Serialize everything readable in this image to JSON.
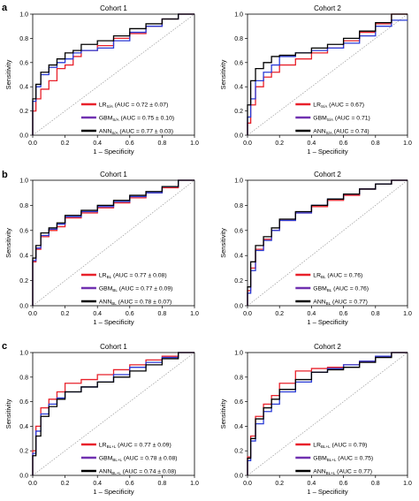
{
  "colors": {
    "lr": "#e8202a",
    "gbm": "#7030b0",
    "ann": "#000000",
    "gbm_blue": "#2a3bd6",
    "diag": "#9a9a9a",
    "legend_gbm": "#7030b0"
  },
  "panel_letters": [
    "a",
    "b",
    "c"
  ],
  "chart_data": [
    {
      "type": "line",
      "panel": "a",
      "title": "Cohort 1",
      "xlabel": "1 – Specificity",
      "ylabel": "Sensitivity",
      "xlim": [
        0,
        1
      ],
      "ylim": [
        0,
        1
      ],
      "xticks": [
        "0.0",
        "0.2",
        "0.4",
        "0.6",
        "0.8",
        "1.0"
      ],
      "yticks": [
        "0.0",
        "0.2",
        "0.4",
        "0.6",
        "0.8",
        "1.0"
      ],
      "legend_position": "bottom-right",
      "series": [
        {
          "key": "lr",
          "name": "LR",
          "sub": "S/A",
          "auc": "(AUC = 0.72 ± 0.07)",
          "x": [
            0,
            0.02,
            0.05,
            0.1,
            0.15,
            0.2,
            0.25,
            0.3,
            0.4,
            0.5,
            0.6,
            0.7,
            0.8,
            0.9,
            1.0
          ],
          "y": [
            0,
            0.2,
            0.3,
            0.38,
            0.45,
            0.55,
            0.58,
            0.65,
            0.7,
            0.74,
            0.8,
            0.84,
            0.9,
            0.96,
            1.0
          ]
        },
        {
          "key": "gbm",
          "name": "GBM",
          "sub": "S/A",
          "auc": "(AUC = 0.75 ± 0.10)",
          "x": [
            0,
            0.02,
            0.05,
            0.1,
            0.15,
            0.2,
            0.25,
            0.3,
            0.4,
            0.5,
            0.6,
            0.7,
            0.8,
            0.9,
            1.0
          ],
          "y": [
            0,
            0.28,
            0.4,
            0.5,
            0.56,
            0.6,
            0.63,
            0.68,
            0.7,
            0.72,
            0.78,
            0.85,
            0.9,
            0.96,
            1.0
          ]
        },
        {
          "key": "ann",
          "name": "ANN",
          "sub": "S/A",
          "auc": "(AUC = 0.77 ± 0.03)",
          "x": [
            0,
            0.02,
            0.05,
            0.1,
            0.15,
            0.2,
            0.25,
            0.3,
            0.4,
            0.5,
            0.6,
            0.7,
            0.8,
            0.9,
            1.0
          ],
          "y": [
            0,
            0.3,
            0.42,
            0.52,
            0.58,
            0.63,
            0.68,
            0.7,
            0.75,
            0.78,
            0.82,
            0.88,
            0.92,
            0.96,
            1.0
          ]
        }
      ]
    },
    {
      "type": "line",
      "panel": "a",
      "title": "Cohort 2",
      "xlabel": "1 – Specificity",
      "ylabel": "Sensitivity",
      "xlim": [
        0,
        1
      ],
      "ylim": [
        0,
        1
      ],
      "xticks": [
        "0.0",
        "0.2",
        "0.4",
        "0.6",
        "0.8",
        "1.0"
      ],
      "yticks": [
        "0.0",
        "0.2",
        "0.4",
        "0.6",
        "0.8",
        "1.0"
      ],
      "legend_position": "bottom-right",
      "series": [
        {
          "key": "lr",
          "name": "LR",
          "sub": "S/A",
          "auc": "(AUC = 0.67)",
          "x": [
            0,
            0.02,
            0.05,
            0.1,
            0.15,
            0.2,
            0.3,
            0.4,
            0.5,
            0.6,
            0.7,
            0.8,
            0.9,
            1.0
          ],
          "y": [
            0,
            0.1,
            0.25,
            0.4,
            0.48,
            0.52,
            0.58,
            0.63,
            0.68,
            0.72,
            0.78,
            0.85,
            0.92,
            1.0
          ]
        },
        {
          "key": "gbm",
          "name": "GBM",
          "sub": "S/A",
          "auc": "(AUC = 0.71)",
          "x": [
            0,
            0.02,
            0.05,
            0.1,
            0.15,
            0.2,
            0.3,
            0.4,
            0.5,
            0.6,
            0.7,
            0.8,
            0.9,
            1.0
          ],
          "y": [
            0,
            0.15,
            0.3,
            0.45,
            0.52,
            0.58,
            0.65,
            0.68,
            0.7,
            0.72,
            0.76,
            0.82,
            0.9,
            0.95
          ]
        },
        {
          "key": "ann",
          "name": "ANN",
          "sub": "S/A",
          "auc": "(AUC = 0.74)",
          "x": [
            0,
            0.02,
            0.05,
            0.1,
            0.15,
            0.2,
            0.3,
            0.4,
            0.5,
            0.6,
            0.7,
            0.8,
            0.9,
            1.0
          ],
          "y": [
            0,
            0.25,
            0.45,
            0.55,
            0.6,
            0.65,
            0.66,
            0.68,
            0.72,
            0.75,
            0.8,
            0.86,
            0.93,
            1.0
          ]
        }
      ]
    },
    {
      "type": "line",
      "panel": "b",
      "title": "Cohort 1",
      "xlabel": "1 – Specificity",
      "ylabel": "Sensitivity",
      "xlim": [
        0,
        1
      ],
      "ylim": [
        0,
        1
      ],
      "xticks": [
        "0.0",
        "0.2",
        "0.4",
        "0.6",
        "0.8",
        "1.0"
      ],
      "yticks": [
        "0.0",
        "0.2",
        "0.4",
        "0.6",
        "0.8",
        "1.0"
      ],
      "legend_position": "bottom-right",
      "series": [
        {
          "key": "lr",
          "name": "LR",
          "sub": "BL",
          "auc": "(AUC = 0.77 ± 0.08)",
          "x": [
            0,
            0.02,
            0.05,
            0.1,
            0.15,
            0.2,
            0.3,
            0.4,
            0.5,
            0.6,
            0.7,
            0.8,
            0.9,
            1.0
          ],
          "y": [
            0,
            0.35,
            0.45,
            0.55,
            0.6,
            0.63,
            0.7,
            0.74,
            0.78,
            0.82,
            0.86,
            0.9,
            0.94,
            1.0
          ]
        },
        {
          "key": "gbm",
          "name": "GBM",
          "sub": "BL",
          "auc": "(AUC = 0.77 ± 0.09)",
          "x": [
            0,
            0.02,
            0.05,
            0.1,
            0.15,
            0.2,
            0.3,
            0.4,
            0.5,
            0.6,
            0.7,
            0.8,
            0.9,
            1.0
          ],
          "y": [
            0,
            0.36,
            0.46,
            0.56,
            0.61,
            0.65,
            0.71,
            0.75,
            0.79,
            0.83,
            0.87,
            0.9,
            0.95,
            1.0
          ]
        },
        {
          "key": "ann",
          "name": "ANN",
          "sub": "BL",
          "auc": "(AUC = 0.78 ± 0.07)",
          "x": [
            0,
            0.02,
            0.05,
            0.1,
            0.15,
            0.2,
            0.3,
            0.4,
            0.5,
            0.6,
            0.7,
            0.8,
            0.9,
            1.0
          ],
          "y": [
            0,
            0.38,
            0.48,
            0.58,
            0.62,
            0.66,
            0.72,
            0.76,
            0.8,
            0.84,
            0.88,
            0.91,
            0.95,
            1.0
          ]
        }
      ]
    },
    {
      "type": "line",
      "panel": "b",
      "title": "Cohort 2",
      "xlabel": "1 – Specificity",
      "ylabel": "Sensitivity",
      "xlim": [
        0,
        1
      ],
      "ylim": [
        0,
        1
      ],
      "xticks": [
        "0.0",
        "0.2",
        "0.4",
        "0.6",
        "0.8",
        "1.0"
      ],
      "yticks": [
        "0.0",
        "0.2",
        "0.4",
        "0.6",
        "0.8",
        "1.0"
      ],
      "legend_position": "bottom-right",
      "series": [
        {
          "key": "lr",
          "name": "LR",
          "sub": "BL",
          "auc": "(AUC = 0.76)",
          "x": [
            0,
            0.02,
            0.05,
            0.1,
            0.15,
            0.2,
            0.3,
            0.4,
            0.5,
            0.6,
            0.7,
            0.8,
            0.9,
            1.0
          ],
          "y": [
            0,
            0.12,
            0.3,
            0.45,
            0.53,
            0.6,
            0.68,
            0.74,
            0.79,
            0.84,
            0.88,
            0.93,
            0.97,
            1.0
          ]
        },
        {
          "key": "gbm",
          "name": "GBM",
          "sub": "BL",
          "auc": "(AUC = 0.76)",
          "x": [
            0,
            0.02,
            0.05,
            0.1,
            0.15,
            0.2,
            0.3,
            0.4,
            0.5,
            0.6,
            0.7,
            0.8,
            0.9,
            1.0
          ],
          "y": [
            0,
            0.1,
            0.28,
            0.44,
            0.52,
            0.6,
            0.68,
            0.74,
            0.8,
            0.85,
            0.89,
            0.93,
            0.97,
            1.0
          ]
        },
        {
          "key": "ann",
          "name": "ANN",
          "sub": "BL",
          "auc": "(AUC = 0.77)",
          "x": [
            0,
            0.02,
            0.05,
            0.1,
            0.15,
            0.2,
            0.3,
            0.4,
            0.5,
            0.6,
            0.7,
            0.8,
            0.9,
            1.0
          ],
          "y": [
            0,
            0.15,
            0.35,
            0.48,
            0.55,
            0.62,
            0.69,
            0.75,
            0.8,
            0.85,
            0.89,
            0.93,
            0.97,
            1.0
          ]
        }
      ]
    },
    {
      "type": "line",
      "panel": "c",
      "title": "Cohort 1",
      "xlabel": "1 – Specificity",
      "ylabel": "Sensitivity",
      "xlim": [
        0,
        1
      ],
      "ylim": [
        0,
        1
      ],
      "xticks": [
        "0.0",
        "0.2",
        "0.4",
        "0.6",
        "0.8",
        "1.0"
      ],
      "yticks": [
        "0.0",
        "0.2",
        "0.4",
        "0.6",
        "0.8",
        "1.0"
      ],
      "legend_position": "bottom-right",
      "series": [
        {
          "key": "lr",
          "name": "LR",
          "sub": "BL+L",
          "auc": "(AUC = 0.77 ± 0.09)",
          "x": [
            0,
            0.02,
            0.05,
            0.1,
            0.15,
            0.2,
            0.3,
            0.4,
            0.5,
            0.6,
            0.7,
            0.8,
            0.9,
            1.0
          ],
          "y": [
            0,
            0.2,
            0.4,
            0.55,
            0.62,
            0.68,
            0.75,
            0.78,
            0.82,
            0.86,
            0.9,
            0.94,
            0.97,
            1.0
          ]
        },
        {
          "key": "gbm",
          "name": "GBM",
          "sub": "BL+L",
          "auc": "(AUC = 0.78 ± 0.08)",
          "x": [
            0,
            0.02,
            0.05,
            0.1,
            0.15,
            0.2,
            0.3,
            0.4,
            0.5,
            0.6,
            0.7,
            0.8,
            0.9,
            1.0
          ],
          "y": [
            0,
            0.18,
            0.36,
            0.5,
            0.58,
            0.63,
            0.68,
            0.72,
            0.76,
            0.82,
            0.88,
            0.92,
            0.96,
            1.0
          ]
        },
        {
          "key": "ann",
          "name": "ANN",
          "sub": "BL+L",
          "auc": "(AUC = 0.74 ± 0.08)",
          "x": [
            0,
            0.02,
            0.05,
            0.1,
            0.15,
            0.2,
            0.3,
            0.4,
            0.5,
            0.6,
            0.7,
            0.8,
            0.9,
            1.0
          ],
          "y": [
            0,
            0.16,
            0.32,
            0.48,
            0.56,
            0.62,
            0.68,
            0.72,
            0.76,
            0.8,
            0.85,
            0.9,
            0.95,
            1.0
          ]
        }
      ]
    },
    {
      "type": "line",
      "panel": "c",
      "title": "Cohort 2",
      "xlabel": "1 – Specificity",
      "ylabel": "Sensitivity",
      "xlim": [
        0,
        1
      ],
      "ylim": [
        0,
        1
      ],
      "xticks": [
        "0.0",
        "0.2",
        "0.4",
        "0.6",
        "0.8",
        "1.0"
      ],
      "yticks": [
        "0.0",
        "0.2",
        "0.4",
        "0.6",
        "0.8",
        "1.0"
      ],
      "legend_position": "bottom-right",
      "series": [
        {
          "key": "lr",
          "name": "LR",
          "sub": "BL+L",
          "auc": "(AUC = 0.79)",
          "x": [
            0,
            0.02,
            0.05,
            0.1,
            0.15,
            0.2,
            0.3,
            0.4,
            0.5,
            0.6,
            0.7,
            0.8,
            0.9,
            1.0
          ],
          "y": [
            0,
            0.15,
            0.32,
            0.48,
            0.58,
            0.65,
            0.75,
            0.85,
            0.87,
            0.88,
            0.9,
            0.93,
            0.97,
            1.0
          ]
        },
        {
          "key": "gbm",
          "name": "GBM",
          "sub": "BL+L",
          "auc": "(AUC = 0.75)",
          "x": [
            0,
            0.02,
            0.05,
            0.1,
            0.15,
            0.2,
            0.3,
            0.4,
            0.5,
            0.6,
            0.7,
            0.8,
            0.9,
            1.0
          ],
          "y": [
            0,
            0.12,
            0.28,
            0.42,
            0.52,
            0.58,
            0.68,
            0.76,
            0.84,
            0.87,
            0.9,
            0.93,
            0.97,
            1.0
          ]
        },
        {
          "key": "ann",
          "name": "ANN",
          "sub": "BL+L",
          "auc": "(AUC = 0.77)",
          "x": [
            0,
            0.02,
            0.05,
            0.1,
            0.15,
            0.2,
            0.3,
            0.4,
            0.5,
            0.6,
            0.7,
            0.8,
            0.9,
            1.0
          ],
          "y": [
            0,
            0.14,
            0.3,
            0.46,
            0.55,
            0.62,
            0.7,
            0.78,
            0.84,
            0.86,
            0.88,
            0.92,
            0.96,
            1.0
          ]
        }
      ]
    }
  ]
}
